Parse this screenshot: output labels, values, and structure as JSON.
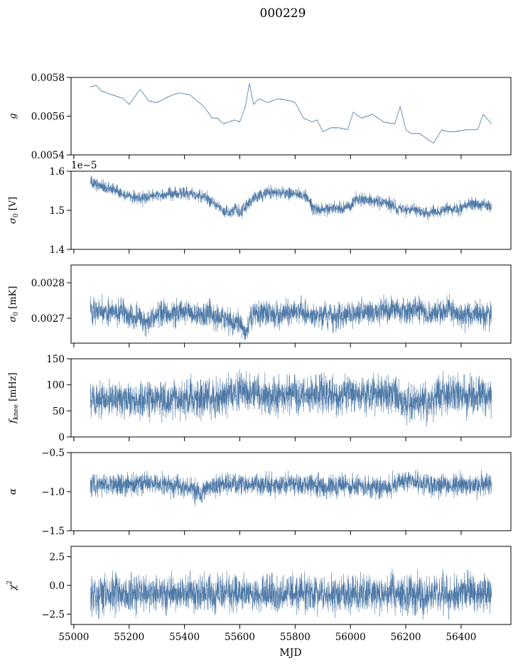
{
  "figure": {
    "title": "000229",
    "xlabel": "MJD",
    "series_color": "#4e79a7"
  },
  "chart_data": [
    {
      "type": "line",
      "ylabel": "g",
      "ylabel_sub": "",
      "ylim": [
        0.0054,
        0.0058
      ],
      "yticks": [
        0.0054,
        0.0056,
        0.0058
      ],
      "ytick_labels": [
        "0.0054",
        "0.0056",
        "0.0058"
      ],
      "offset_text": "",
      "noise": 0.0,
      "x": [
        55060,
        55080,
        55100,
        55140,
        55180,
        55200,
        55240,
        55270,
        55300,
        55340,
        55380,
        55420,
        55470,
        55500,
        55520,
        55540,
        55560,
        55580,
        55600,
        55620,
        55635,
        55650,
        55670,
        55700,
        55740,
        55780,
        55800,
        55830,
        55860,
        55880,
        55900,
        55930,
        55960,
        55990,
        56010,
        56040,
        56080,
        56120,
        56160,
        56180,
        56200,
        56220,
        56250,
        56280,
        56300,
        56330,
        56350,
        56380,
        56420,
        56460,
        56480,
        56510
      ],
      "y": [
        0.00575,
        0.00576,
        0.00573,
        0.00571,
        0.00569,
        0.00566,
        0.00574,
        0.00568,
        0.00567,
        0.0057,
        0.00572,
        0.00571,
        0.00565,
        0.00559,
        0.00559,
        0.00556,
        0.00557,
        0.00558,
        0.00557,
        0.00565,
        0.00577,
        0.00566,
        0.00569,
        0.00567,
        0.00569,
        0.00568,
        0.00567,
        0.00559,
        0.00557,
        0.00558,
        0.00552,
        0.00554,
        0.00554,
        0.00553,
        0.00562,
        0.00559,
        0.00561,
        0.00557,
        0.00556,
        0.00565,
        0.00553,
        0.00551,
        0.00551,
        0.00548,
        0.00546,
        0.00553,
        0.00552,
        0.00552,
        0.00553,
        0.00553,
        0.00561,
        0.00556
      ]
    },
    {
      "type": "line",
      "ylabel": "σ",
      "ylabel_sub": "0",
      "ylabel_unit": " [V]",
      "ylim": [
        1.4,
        1.6
      ],
      "yticks": [
        1.4,
        1.5,
        1.6
      ],
      "ytick_labels": [
        "1.4",
        "1.5",
        "1.6"
      ],
      "offset_text": "1e−5",
      "noise": 0.008,
      "x": [
        55060,
        55100,
        55160,
        55200,
        55250,
        55300,
        55350,
        55400,
        55440,
        55480,
        55520,
        55540,
        55560,
        55580,
        55600,
        55620,
        55650,
        55700,
        55750,
        55800,
        55840,
        55860,
        55880,
        55920,
        55950,
        56000,
        56020,
        56050,
        56100,
        56150,
        56170,
        56200,
        56230,
        56260,
        56280,
        56300,
        56320,
        56350,
        56380,
        56400,
        56430,
        56470,
        56510
      ],
      "y": [
        1.572,
        1.563,
        1.548,
        1.538,
        1.53,
        1.54,
        1.54,
        1.545,
        1.54,
        1.532,
        1.512,
        1.5,
        1.495,
        1.505,
        1.495,
        1.51,
        1.53,
        1.545,
        1.545,
        1.542,
        1.535,
        1.51,
        1.5,
        1.505,
        1.505,
        1.508,
        1.53,
        1.527,
        1.522,
        1.515,
        1.505,
        1.5,
        1.502,
        1.495,
        1.49,
        1.5,
        1.495,
        1.505,
        1.5,
        1.505,
        1.515,
        1.515,
        1.508
      ]
    },
    {
      "type": "line",
      "ylabel": "σ",
      "ylabel_sub": "0",
      "ylabel_unit": " [mK]",
      "ylim": [
        0.00263,
        0.00285
      ],
      "yticks": [
        0.0027,
        0.0028
      ],
      "ytick_labels": [
        "0.0027",
        "0.0028"
      ],
      "offset_text": "",
      "noise": 1.8e-05,
      "x": [
        55060,
        55100,
        55140,
        55180,
        55200,
        55230,
        55260,
        55300,
        55350,
        55400,
        55450,
        55480,
        55520,
        55560,
        55580,
        55600,
        55620,
        55640,
        55660,
        55700,
        55750,
        55800,
        55830,
        55860,
        55900,
        55950,
        56000,
        56050,
        56100,
        56150,
        56200,
        56250,
        56270,
        56300,
        56330,
        56350,
        56400,
        56450,
        56510
      ],
      "y": [
        0.002722,
        0.002725,
        0.002715,
        0.002718,
        0.0027,
        0.002705,
        0.002685,
        0.002715,
        0.002712,
        0.00272,
        0.002712,
        0.002715,
        0.0027,
        0.00269,
        0.002682,
        0.002695,
        0.00266,
        0.0027,
        0.002712,
        0.002715,
        0.002705,
        0.00272,
        0.002722,
        0.0027,
        0.002712,
        0.0027,
        0.002712,
        0.002718,
        0.00272,
        0.002722,
        0.002722,
        0.002728,
        0.002712,
        0.002712,
        0.002712,
        0.002722,
        0.002705,
        0.00271,
        0.00271
      ]
    },
    {
      "type": "line",
      "ylabel": "f",
      "ylabel_sub": "knee",
      "ylabel_unit": " [mHz]",
      "ylim": [
        0,
        150
      ],
      "yticks": [
        0,
        50,
        100,
        150
      ],
      "ytick_labels": [
        "0",
        "50",
        "100",
        "150"
      ],
      "offset_text": "",
      "noise": 18,
      "x": [
        55060,
        55200,
        55400,
        55550,
        55600,
        55650,
        55700,
        55800,
        55900,
        56000,
        56100,
        56150,
        56200,
        56250,
        56290,
        56320,
        56400,
        56510
      ],
      "y": [
        72,
        72,
        72,
        78,
        88,
        88,
        80,
        80,
        82,
        84,
        85,
        80,
        70,
        70,
        68,
        82,
        80,
        78
      ]
    },
    {
      "type": "line",
      "ylabel": "α",
      "ylabel_sub": "",
      "ylabel_unit": "",
      "ylim": [
        -1.5,
        -0.5
      ],
      "yticks": [
        -1.5,
        -1.0,
        -0.5
      ],
      "ytick_labels": [
        "−1.5",
        "−1.0",
        "−0.5"
      ],
      "offset_text": "",
      "noise": 0.07,
      "x": [
        55060,
        55200,
        55300,
        55400,
        55450,
        55500,
        55600,
        55700,
        55800,
        55900,
        56000,
        56100,
        56200,
        56300,
        56400,
        56510
      ],
      "y": [
        -0.92,
        -0.9,
        -0.89,
        -0.93,
        -1.02,
        -0.93,
        -0.9,
        -0.91,
        -0.9,
        -0.94,
        -0.92,
        -0.96,
        -0.86,
        -0.93,
        -0.9,
        -0.92
      ]
    },
    {
      "type": "line",
      "ylabel": "χ",
      "ylabel_sub": "",
      "ylabel_sup": "2",
      "ylabel_unit": "",
      "ylim": [
        -3.4,
        3.4
      ],
      "yticks": [
        -2.5,
        0.0,
        2.5
      ],
      "ytick_labels": [
        "−2.5",
        "0.0",
        "2.5"
      ],
      "offset_text": "",
      "noise": 0.8,
      "x": [
        55060,
        55300,
        55600,
        55900,
        56200,
        56510
      ],
      "y": [
        -0.7,
        -0.7,
        -0.7,
        -0.7,
        -0.8,
        -0.7
      ]
    }
  ],
  "xaxis": {
    "xlim": [
      54990,
      56580
    ],
    "xticks": [
      55000,
      55200,
      55400,
      55600,
      55800,
      56000,
      56200,
      56400
    ],
    "xtick_labels": [
      "55000",
      "55200",
      "55400",
      "55600",
      "55800",
      "56000",
      "56200",
      "56400"
    ]
  }
}
